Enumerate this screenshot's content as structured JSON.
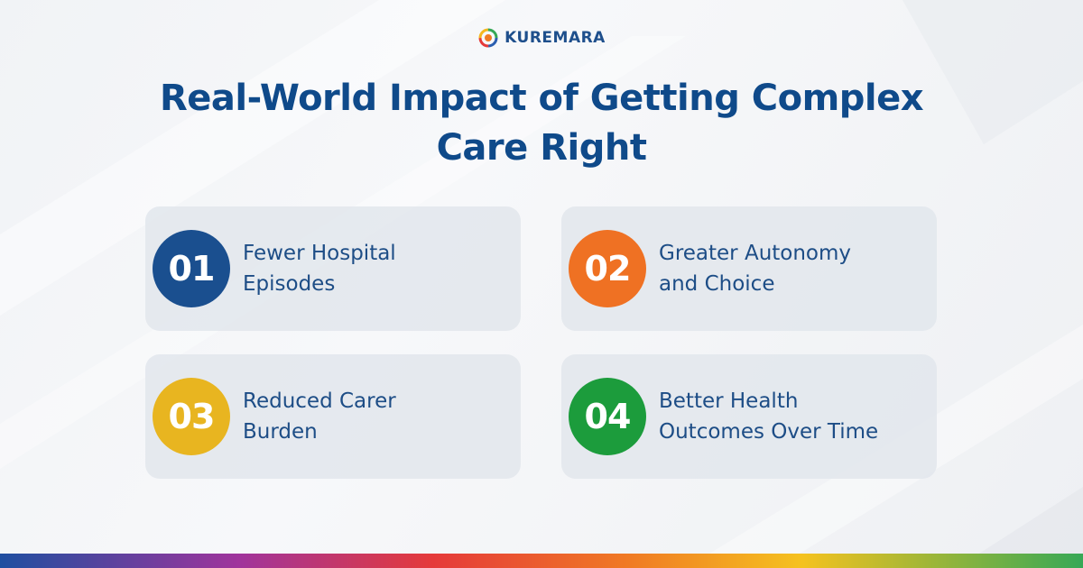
{
  "brand": {
    "logo_text": "KUREMARA",
    "logo_icon": "circular-swirl-logo"
  },
  "title": {
    "line1": "Real-World Impact of Getting Complex",
    "line2": "Care Right"
  },
  "items": [
    {
      "number": "01",
      "line1": "Fewer Hospital",
      "line2": "Episodes",
      "color": "#1a4f8f"
    },
    {
      "number": "02",
      "line1": "Greater Autonomy",
      "line2": "and Choice",
      "color": "#ef7123"
    },
    {
      "number": "03",
      "line1": "Reduced Carer",
      "line2": "Burden",
      "color": "#e8b520"
    },
    {
      "number": "04",
      "line1": "Better Health",
      "line2": "Outcomes Over Time",
      "color": "#1c9c3c"
    }
  ],
  "colors": {
    "title": "#0f4a8a",
    "card_text": "#1d4d86",
    "card_bg": "#e2e6ec",
    "background": "#f3f5f8"
  }
}
